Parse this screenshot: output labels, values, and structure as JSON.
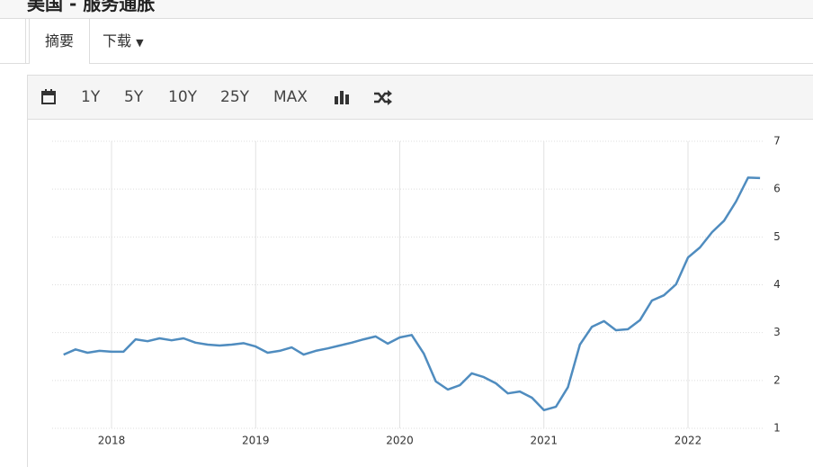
{
  "header": {
    "title": "美国 - 服务通胀"
  },
  "tabs": [
    "摘要",
    "下载"
  ],
  "toolbar": [
    "1Y",
    "5Y",
    "10Y",
    "25Y",
    "MAX"
  ],
  "chart_data": {
    "type": "line",
    "x": [
      2017.667,
      2017.75,
      2017.833,
      2017.917,
      2018,
      2018.083,
      2018.167,
      2018.25,
      2018.333,
      2018.417,
      2018.5,
      2018.583,
      2018.667,
      2018.75,
      2018.833,
      2018.917,
      2019,
      2019.083,
      2019.167,
      2019.25,
      2019.333,
      2019.417,
      2019.5,
      2019.583,
      2019.667,
      2019.75,
      2019.833,
      2019.917,
      2020,
      2020.083,
      2020.167,
      2020.25,
      2020.333,
      2020.417,
      2020.5,
      2020.583,
      2020.667,
      2020.75,
      2020.833,
      2020.917,
      2021,
      2021.083,
      2021.167,
      2021.25,
      2021.333,
      2021.417,
      2021.5,
      2021.583,
      2021.667,
      2021.75,
      2021.833,
      2021.917,
      2022,
      2022.083,
      2022.167,
      2022.25,
      2022.333,
      2022.417,
      2022.5
    ],
    "series": [
      {
        "color": "#4f8cbf",
        "values": [
          2.54,
          2.65,
          2.58,
          2.62,
          2.6,
          2.6,
          2.86,
          2.82,
          2.88,
          2.84,
          2.88,
          2.79,
          2.75,
          2.73,
          2.75,
          2.78,
          2.71,
          2.58,
          2.62,
          2.69,
          2.54,
          2.62,
          2.67,
          2.73,
          2.79,
          2.86,
          2.92,
          2.77,
          2.9,
          2.95,
          2.56,
          1.98,
          1.81,
          1.9,
          2.15,
          2.07,
          1.94,
          1.73,
          1.77,
          1.64,
          1.38,
          1.45,
          1.86,
          2.75,
          3.12,
          3.24,
          3.05,
          3.07,
          3.26,
          3.67,
          3.78,
          4.01,
          4.57,
          4.78,
          5.1,
          5.34,
          5.74,
          6.24,
          6.23
        ]
      }
    ],
    "xlim": [
      2017.588,
      2022.518
    ],
    "xticks": [
      2018,
      2019,
      2020,
      2021,
      2022
    ],
    "ylim": [
      1,
      7
    ],
    "yticks": [
      1,
      2,
      3,
      4,
      5,
      6,
      7
    ],
    "grid": true
  }
}
